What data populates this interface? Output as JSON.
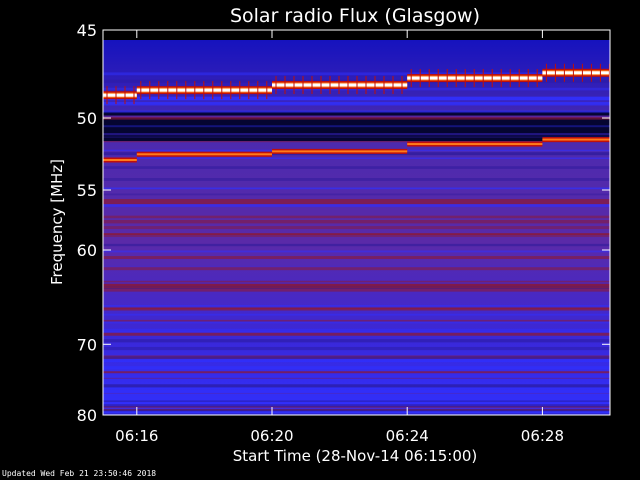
{
  "chart_data": {
    "type": "heatmap",
    "title": "Solar radio Flux (Glasgow)",
    "xlabel": "Start Time (28-Nov-14 06:15:00)",
    "ylabel": "Frequency [MHz]",
    "x_unit": "time",
    "x_ticks": [
      "06:16",
      "06:20",
      "06:24",
      "06:28"
    ],
    "x_tick_minutes": [
      1,
      5,
      9,
      13
    ],
    "xlim_minutes": [
      0,
      15
    ],
    "y_ticks": [
      45,
      50,
      55,
      60,
      70,
      80
    ],
    "ylim": [
      45,
      80
    ],
    "y_scale": "reciprocal",
    "colormap": [
      "#000000",
      "#1010c0",
      "#3030ff",
      "#5a2aa8",
      "#8a1a3a",
      "#c0100a",
      "#ff7a1a",
      "#ffffff"
    ],
    "bright_lines": [
      {
        "freq_by_minute": [
          [
            0,
            48.6
          ],
          [
            1,
            48.3
          ],
          [
            5,
            48.0
          ],
          [
            9,
            47.6
          ],
          [
            13,
            47.3
          ],
          [
            15,
            47.3
          ]
        ],
        "intensity": "white"
      },
      {
        "freq_by_minute": [
          [
            0,
            52.8
          ],
          [
            1,
            52.4
          ],
          [
            5,
            52.2
          ],
          [
            9,
            51.7
          ],
          [
            13,
            51.4
          ],
          [
            15,
            51.4
          ]
        ],
        "intensity": "orange"
      }
    ]
  },
  "footer": {
    "updated": "Updated Wed Feb 21 23:50:46 2018"
  }
}
